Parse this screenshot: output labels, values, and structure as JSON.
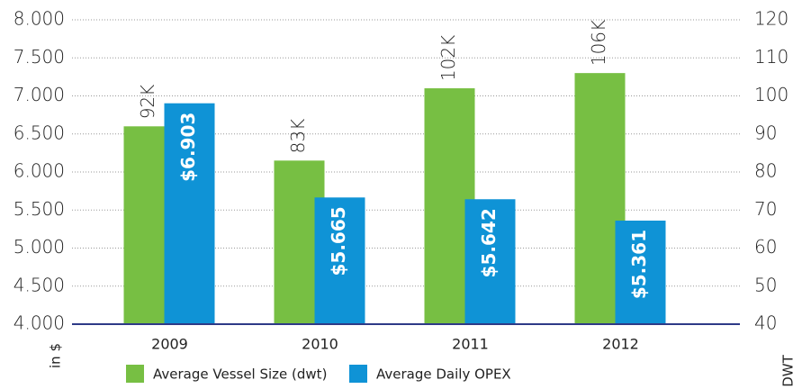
{
  "chart_data": {
    "type": "bar",
    "categories": [
      "2009",
      "2010",
      "2011",
      "2012"
    ],
    "series": [
      {
        "name": "Average Vessel Size (dwt)",
        "color": "#77bf43",
        "axis": "y2",
        "values": [
          92,
          83,
          102,
          106
        ],
        "value_labels": [
          "92K",
          "83K",
          "102K",
          "106K"
        ]
      },
      {
        "name": "Average Daily OPEX",
        "color": "#0f93d6",
        "axis": "y",
        "values": [
          6.903,
          5.665,
          5.642,
          5.361
        ],
        "value_labels": [
          "$6.903",
          "$5.665",
          "$5.642",
          "$5.361"
        ]
      }
    ],
    "ylabel": "in $",
    "y2label": "DWT",
    "ylim": [
      4,
      8
    ],
    "yticks": [
      {
        "value": 4,
        "label": "4.000"
      },
      {
        "value": 4.5,
        "label": "4.500"
      },
      {
        "value": 5,
        "label": "5.000"
      },
      {
        "value": 5.5,
        "label": "5.500"
      },
      {
        "value": 6,
        "label": "6.000"
      },
      {
        "value": 6.5,
        "label": "6.500"
      },
      {
        "value": 7,
        "label": "7.000"
      },
      {
        "value": 7.5,
        "label": "7.500"
      },
      {
        "value": 8,
        "label": "8.000"
      }
    ],
    "y2lim": [
      40,
      120
    ],
    "y2ticks": [
      40,
      50,
      60,
      70,
      80,
      90,
      100,
      110,
      120
    ],
    "grid": true,
    "legend": "bottom"
  }
}
